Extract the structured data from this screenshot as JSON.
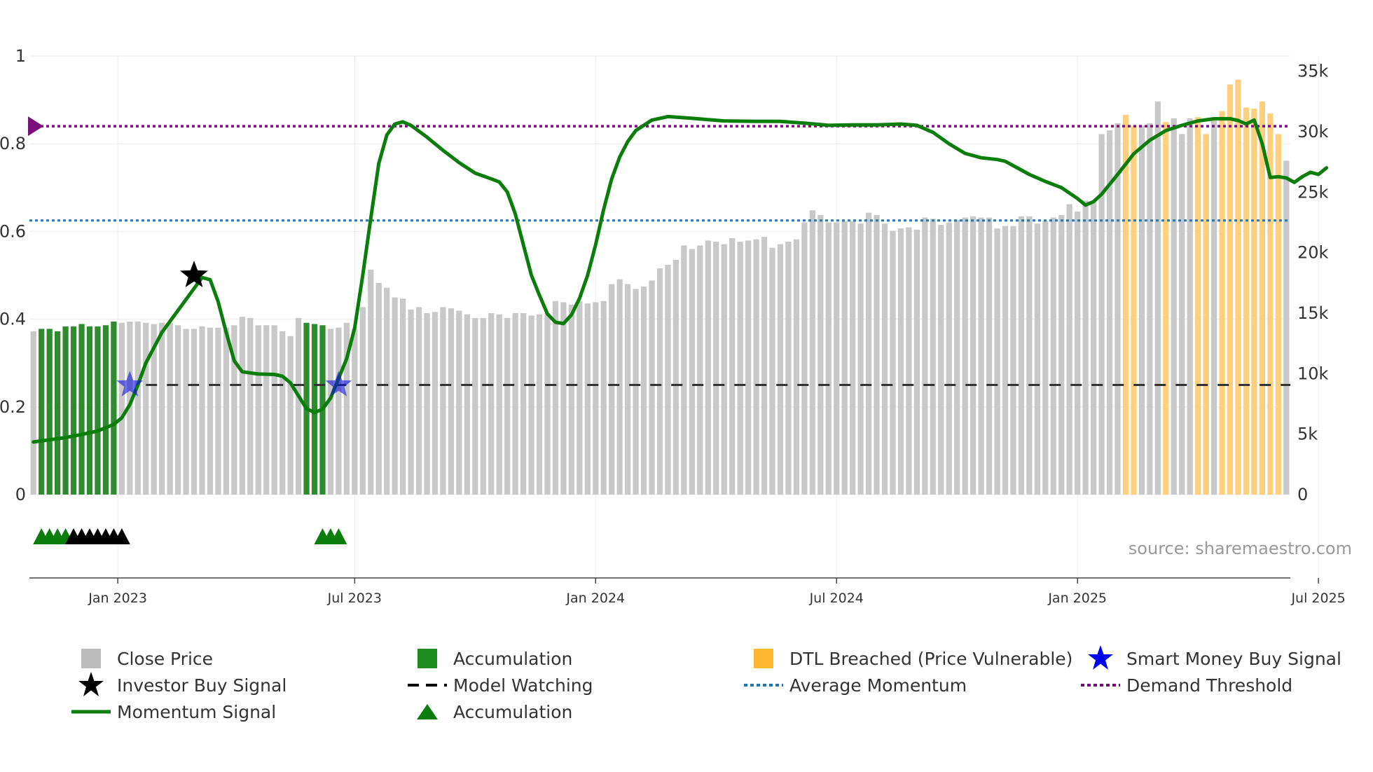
{
  "chart_data": {
    "type": "bar",
    "source": "source: sharemaestro.com",
    "left_axis": {
      "ticks": [
        "0",
        "0.2",
        "0.4",
        "0.6",
        "0.8",
        "1"
      ],
      "ylim": [
        0,
        1
      ]
    },
    "right_axis": {
      "ticks": [
        "0",
        "5k",
        "10k",
        "15k",
        "20k",
        "25k",
        "30k",
        "35k"
      ],
      "ylim": [
        0,
        36250
      ]
    },
    "x_ticks": [
      "Jan 2023",
      "Jul 2023",
      "Jan 2024",
      "Jul 2024",
      "Jan 2025",
      "Jul 2025"
    ],
    "weeks_per_bar": 1,
    "close_price": [
      13500,
      13700,
      13700,
      13500,
      13900,
      13900,
      14100,
      13900,
      13900,
      14000,
      14300,
      14200,
      14300,
      14300,
      14200,
      14100,
      14200,
      14200,
      14000,
      13700,
      13700,
      13900,
      13800,
      13800,
      13800,
      14000,
      14700,
      14600,
      14000,
      14000,
      14000,
      13500,
      13100,
      14600,
      14200,
      14100,
      14000,
      13700,
      13800,
      14200,
      13700,
      15500,
      18600,
      17500,
      17100,
      16300,
      16200,
      15300,
      15500,
      15000,
      15100,
      15500,
      15400,
      15200,
      14900,
      14600,
      14600,
      15000,
      14900,
      14600,
      15000,
      15000,
      14800,
      14900,
      15000,
      16000,
      15900,
      15700,
      16000,
      15800,
      15900,
      16000,
      17400,
      17800,
      17400,
      17000,
      17200,
      17700,
      18700,
      19000,
      19400,
      20600,
      20300,
      20600,
      21000,
      20900,
      20700,
      21200,
      20900,
      21000,
      21100,
      21300,
      20400,
      20700,
      20900,
      21100,
      22500,
      23500,
      23100,
      22500,
      22500,
      22600,
      22600,
      22400,
      23300,
      23100,
      22400,
      21800,
      22000,
      22100,
      21900,
      22900,
      22800,
      22300,
      22500,
      22700,
      22900,
      23000,
      22900,
      22900,
      22000,
      22200,
      22200,
      23000,
      23000,
      22400,
      22600,
      22900,
      23100,
      24000,
      23400,
      24300,
      24200,
      29800,
      30100,
      30700,
      31400,
      30500,
      30500,
      30700,
      32500,
      30800,
      31100,
      29800,
      31100,
      31200,
      29800,
      31200,
      31700,
      33900,
      34300,
      32000,
      31900,
      32500,
      31500,
      29800,
      27600
    ],
    "bar_state": [
      "n",
      "g",
      "g",
      "g",
      "g",
      "g",
      "g",
      "g",
      "g",
      "g",
      "g",
      "n",
      "n",
      "n",
      "n",
      "n",
      "n",
      "n",
      "n",
      "n",
      "n",
      "n",
      "n",
      "n",
      "n",
      "n",
      "n",
      "n",
      "n",
      "n",
      "n",
      "n",
      "n",
      "n",
      "g",
      "g",
      "g",
      "n",
      "n",
      "n",
      "n",
      "n",
      "n",
      "n",
      "n",
      "n",
      "n",
      "n",
      "n",
      "n",
      "n",
      "n",
      "n",
      "n",
      "n",
      "n",
      "n",
      "n",
      "n",
      "n",
      "n",
      "n",
      "n",
      "n",
      "n",
      "n",
      "n",
      "n",
      "n",
      "n",
      "n",
      "n",
      "n",
      "n",
      "n",
      "n",
      "n",
      "n",
      "n",
      "n",
      "n",
      "n",
      "n",
      "n",
      "n",
      "n",
      "n",
      "n",
      "n",
      "n",
      "n",
      "n",
      "n",
      "n",
      "n",
      "n",
      "n",
      "n",
      "n",
      "n",
      "n",
      "n",
      "n",
      "n",
      "n",
      "n",
      "n",
      "n",
      "n",
      "n",
      "n",
      "n",
      "n",
      "n",
      "n",
      "n",
      "n",
      "n",
      "n",
      "n",
      "n",
      "n",
      "n",
      "n",
      "n",
      "n",
      "n",
      "n",
      "n",
      "n",
      "n",
      "n",
      "n",
      "n",
      "n",
      "n",
      "o",
      "o",
      "n",
      "n",
      "n",
      "o",
      "n",
      "n",
      "n",
      "o",
      "o",
      "n",
      "o",
      "o",
      "o",
      "o",
      "o",
      "o",
      "o",
      "o",
      "n",
      "n"
    ],
    "momentum": [
      [
        0,
        0.12
      ],
      [
        2,
        0.125
      ],
      [
        4,
        0.13
      ],
      [
        6,
        0.137
      ],
      [
        8,
        0.145
      ],
      [
        10,
        0.16
      ],
      [
        11,
        0.175
      ],
      [
        12,
        0.205
      ],
      [
        13,
        0.25
      ],
      [
        14,
        0.3
      ],
      [
        16,
        0.37
      ],
      [
        18,
        0.42
      ],
      [
        20,
        0.47
      ],
      [
        21,
        0.495
      ],
      [
        22,
        0.49
      ],
      [
        23,
        0.44
      ],
      [
        24,
        0.37
      ],
      [
        25,
        0.305
      ],
      [
        26,
        0.28
      ],
      [
        28,
        0.275
      ],
      [
        30,
        0.274
      ],
      [
        31,
        0.27
      ],
      [
        32,
        0.255
      ],
      [
        33,
        0.225
      ],
      [
        34,
        0.196
      ],
      [
        35,
        0.187
      ],
      [
        36,
        0.195
      ],
      [
        37,
        0.22
      ],
      [
        38,
        0.265
      ],
      [
        39,
        0.31
      ],
      [
        40,
        0.38
      ],
      [
        41,
        0.5
      ],
      [
        42,
        0.63
      ],
      [
        43,
        0.755
      ],
      [
        44,
        0.82
      ],
      [
        45,
        0.845
      ],
      [
        46,
        0.85
      ],
      [
        47,
        0.842
      ],
      [
        49,
        0.815
      ],
      [
        51,
        0.785
      ],
      [
        53,
        0.757
      ],
      [
        55,
        0.733
      ],
      [
        57,
        0.72
      ],
      [
        58,
        0.713
      ],
      [
        59,
        0.69
      ],
      [
        60,
        0.64
      ],
      [
        61,
        0.57
      ],
      [
        62,
        0.5
      ],
      [
        63,
        0.455
      ],
      [
        64,
        0.412
      ],
      [
        65,
        0.393
      ],
      [
        66,
        0.39
      ],
      [
        67,
        0.41
      ],
      [
        68,
        0.448
      ],
      [
        69,
        0.5
      ],
      [
        70,
        0.57
      ],
      [
        71,
        0.65
      ],
      [
        72,
        0.72
      ],
      [
        73,
        0.77
      ],
      [
        74,
        0.805
      ],
      [
        75,
        0.83
      ],
      [
        77,
        0.854
      ],
      [
        79,
        0.862
      ],
      [
        82,
        0.858
      ],
      [
        86,
        0.852
      ],
      [
        90,
        0.851
      ],
      [
        93,
        0.851
      ],
      [
        96,
        0.847
      ],
      [
        99,
        0.842
      ],
      [
        102,
        0.843
      ],
      [
        105,
        0.843
      ],
      [
        108,
        0.845
      ],
      [
        110,
        0.842
      ],
      [
        112,
        0.826
      ],
      [
        114,
        0.8
      ],
      [
        116,
        0.778
      ],
      [
        118,
        0.768
      ],
      [
        120,
        0.764
      ],
      [
        121,
        0.76
      ],
      [
        122,
        0.75
      ],
      [
        124,
        0.73
      ],
      [
        126,
        0.714
      ],
      [
        128,
        0.7
      ],
      [
        130,
        0.675
      ],
      [
        131,
        0.66
      ],
      [
        132,
        0.668
      ],
      [
        133,
        0.685
      ],
      [
        135,
        0.73
      ],
      [
        137,
        0.777
      ],
      [
        139,
        0.808
      ],
      [
        141,
        0.83
      ],
      [
        143,
        0.842
      ],
      [
        145,
        0.852
      ],
      [
        147,
        0.857
      ],
      [
        149,
        0.857
      ],
      [
        150,
        0.853
      ],
      [
        151,
        0.845
      ],
      [
        152,
        0.854
      ],
      [
        153,
        0.8
      ],
      [
        154,
        0.723
      ],
      [
        155,
        0.725
      ],
      [
        156,
        0.722
      ],
      [
        157,
        0.712
      ],
      [
        158,
        0.725
      ],
      [
        159,
        0.735
      ],
      [
        160,
        0.73
      ],
      [
        161,
        0.745
      ]
    ],
    "thresholds": {
      "demand_threshold": 0.84,
      "average_momentum": 0.625,
      "model_watching": 0.25
    },
    "smart_money_buy": [
      [
        12,
        0.25
      ],
      [
        38,
        0.25
      ]
    ],
    "investor_buy": [
      [
        20,
        0.5
      ]
    ],
    "accumulation_markers": {
      "green": [
        1,
        2,
        3,
        4,
        36,
        37,
        38
      ],
      "black": [
        5,
        6,
        7,
        8,
        9,
        10,
        11
      ]
    },
    "legend": [
      {
        "label": "Close Price",
        "symbol": "gray-square"
      },
      {
        "label": "Accumulation",
        "symbol": "green-square"
      },
      {
        "label": "DTL Breached (Price Vulnerable)",
        "symbol": "orange-square"
      },
      {
        "label": "Smart Money Buy Signal",
        "symbol": "blue-star"
      },
      {
        "label": "Investor Buy Signal",
        "symbol": "black-star"
      },
      {
        "label": "Model Watching",
        "symbol": "black-dash"
      },
      {
        "label": "Average Momentum",
        "symbol": "blue-dot"
      },
      {
        "label": "Demand Threshold",
        "symbol": "purple-dot"
      },
      {
        "label": "Momentum Signal",
        "symbol": "green-line"
      },
      {
        "label": "Accumulation",
        "symbol": "green-triangle"
      }
    ],
    "colors": {
      "close": "#c8c8c8",
      "accumulation": "#2e8b2e",
      "dtl": "#ffcf7e",
      "momentum": "#0b7d0b",
      "demand": "#7b0f7b",
      "average": "#1f77b4",
      "watching": "#333333",
      "smart_money": "#1111dd",
      "investor": "#000000"
    }
  }
}
